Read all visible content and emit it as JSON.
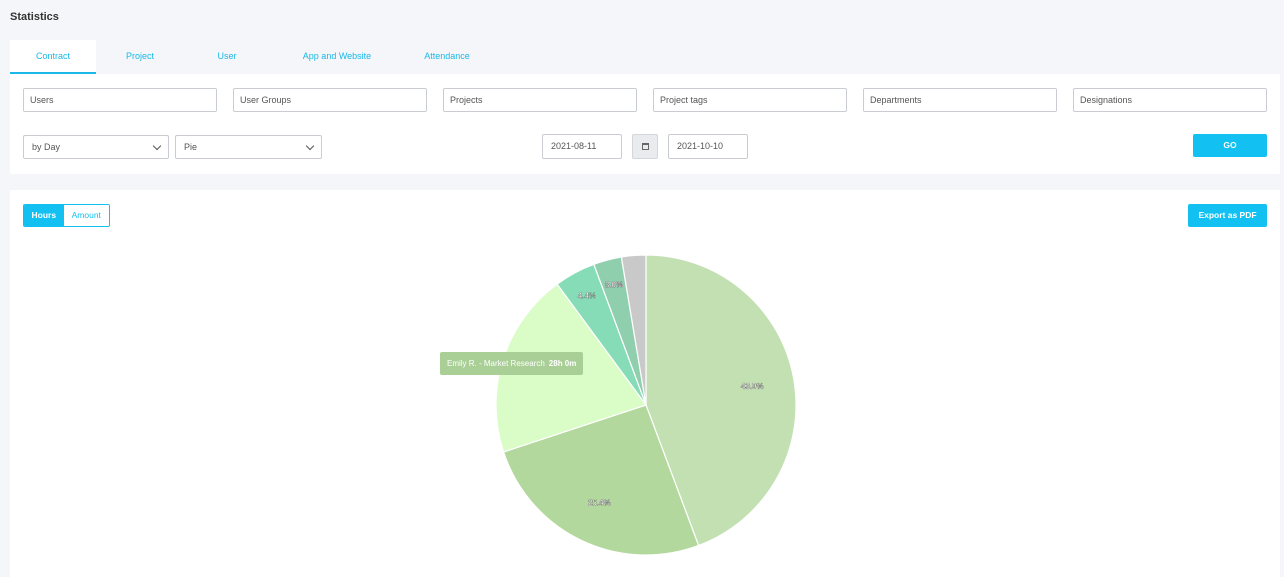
{
  "page": {
    "title": "Statistics"
  },
  "tabs": [
    {
      "label": "Contract",
      "active": true
    },
    {
      "label": "Project",
      "active": false
    },
    {
      "label": "User",
      "active": false
    },
    {
      "label": "App and Website",
      "active": false
    },
    {
      "label": "Attendance",
      "active": false
    }
  ],
  "filters": {
    "fields": [
      "Users",
      "User Groups",
      "Projects",
      "Project tags",
      "Departments",
      "Designations"
    ],
    "period_select": "by Day",
    "chart_type_select": "Pie",
    "date_from": "2021-08-11",
    "date_to": "2021-10-10",
    "go_label": "GO"
  },
  "toolbar": {
    "hours_label": "Hours",
    "amount_label": "Amount",
    "export_label": "Export as PDF"
  },
  "chart_data": {
    "type": "pie",
    "slices": [
      {
        "label": "",
        "value": 43.9,
        "value_label": "43.9%",
        "color": "#c2e0b1"
      },
      {
        "label": "",
        "value": 25.4,
        "value_label": "25.4%",
        "color": "#b3d89e"
      },
      {
        "label": "Emily R. - Market Research",
        "value": 19.8,
        "value_label": "",
        "color": "#dafcc6"
      },
      {
        "label": "",
        "value": 4.4,
        "value_label": "4.4%",
        "color": "#86dcb6"
      },
      {
        "label": "",
        "value": 3.0,
        "value_label": "3.0%",
        "color": "#8fcfae"
      },
      {
        "label": "",
        "value": 2.6,
        "value_label": "",
        "color": "#c9c9c9"
      }
    ],
    "tooltip": {
      "label": "Emily R. - Market Research",
      "value": "28h 0m"
    }
  },
  "colors": {
    "accent": "#12c1f2",
    "tab_text": "#1bb8e8"
  }
}
